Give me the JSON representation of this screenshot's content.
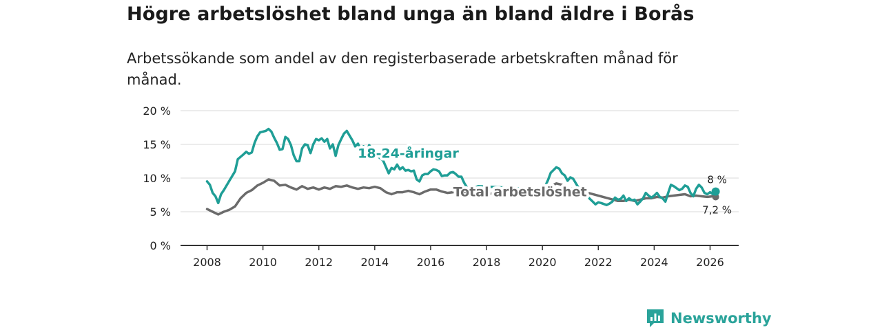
{
  "title": "Högre arbetslöshet bland unga än bland äldre i Borås",
  "subtitle": "Arbetssökande som andel av den registerbaserade arbetskraften månad för månad.",
  "brand": {
    "name": "Newsworthy",
    "logo_icon": "bar-chart-speech-bubble-icon"
  },
  "colors": {
    "youth": "#1f9e96",
    "total": "#6b6b6b",
    "grid": "#d9d9d9",
    "axis": "#333333"
  },
  "chart_data": {
    "type": "line",
    "title": "Högre arbetslöshet bland unga än bland äldre i Borås",
    "xlabel": "",
    "ylabel": "",
    "ylim": [
      0,
      20
    ],
    "xlim": [
      2007.5,
      2027.0
    ],
    "y_ticks": [
      0,
      5,
      10,
      15,
      20
    ],
    "y_tick_labels": [
      "0 %",
      "5 %",
      "10 %",
      "15 %",
      "20 %"
    ],
    "x_ticks": [
      2008,
      2010,
      2012,
      2014,
      2016,
      2018,
      2020,
      2022,
      2024,
      2026
    ],
    "x_tick_labels": [
      "2008",
      "2010",
      "2012",
      "2014",
      "2016",
      "2018",
      "2020",
      "2022",
      "2024",
      "2026"
    ],
    "grid": true,
    "series": [
      {
        "name": "18-24-åringar",
        "end_label": "8 %",
        "points": [
          [
            2008.0,
            9.5
          ],
          [
            2008.1,
            9.0
          ],
          [
            2008.2,
            7.8
          ],
          [
            2008.3,
            7.3
          ],
          [
            2008.4,
            6.3
          ],
          [
            2008.5,
            7.6
          ],
          [
            2008.6,
            8.2
          ],
          [
            2008.8,
            9.6
          ],
          [
            2009.0,
            11.0
          ],
          [
            2009.1,
            12.8
          ],
          [
            2009.3,
            13.5
          ],
          [
            2009.4,
            13.9
          ],
          [
            2009.5,
            13.6
          ],
          [
            2009.6,
            13.8
          ],
          [
            2009.7,
            15.2
          ],
          [
            2009.8,
            16.2
          ],
          [
            2009.9,
            16.8
          ],
          [
            2010.0,
            16.9
          ],
          [
            2010.1,
            17.0
          ],
          [
            2010.2,
            17.3
          ],
          [
            2010.3,
            16.9
          ],
          [
            2010.4,
            16.0
          ],
          [
            2010.5,
            15.2
          ],
          [
            2010.6,
            14.2
          ],
          [
            2010.7,
            14.3
          ],
          [
            2010.8,
            16.1
          ],
          [
            2010.9,
            15.8
          ],
          [
            2011.0,
            14.9
          ],
          [
            2011.1,
            13.4
          ],
          [
            2011.2,
            12.5
          ],
          [
            2011.3,
            12.5
          ],
          [
            2011.4,
            14.4
          ],
          [
            2011.5,
            15.0
          ],
          [
            2011.6,
            14.9
          ],
          [
            2011.7,
            13.7
          ],
          [
            2011.8,
            15.0
          ],
          [
            2011.9,
            15.8
          ],
          [
            2012.0,
            15.6
          ],
          [
            2012.1,
            15.9
          ],
          [
            2012.2,
            15.4
          ],
          [
            2012.3,
            15.8
          ],
          [
            2012.4,
            14.4
          ],
          [
            2012.5,
            15.0
          ],
          [
            2012.6,
            13.3
          ],
          [
            2012.7,
            14.9
          ],
          [
            2012.8,
            15.8
          ],
          [
            2012.9,
            16.6
          ],
          [
            2013.0,
            17.0
          ],
          [
            2013.1,
            16.3
          ],
          [
            2013.2,
            15.6
          ],
          [
            2013.3,
            14.7
          ],
          [
            2013.4,
            15.1
          ],
          [
            2013.5,
            14.2
          ],
          [
            2013.6,
            14.7
          ],
          [
            2013.7,
            13.6
          ],
          [
            2013.8,
            14.9
          ],
          [
            2013.9,
            14.4
          ],
          [
            2014.0,
            13.6
          ],
          [
            2014.3,
            12.6
          ],
          [
            2014.5,
            10.7
          ],
          [
            2014.6,
            11.5
          ],
          [
            2014.7,
            11.3
          ],
          [
            2014.8,
            12.0
          ],
          [
            2014.9,
            11.3
          ],
          [
            2015.0,
            11.6
          ],
          [
            2015.1,
            11.1
          ],
          [
            2015.2,
            11.2
          ],
          [
            2015.3,
            11.0
          ],
          [
            2015.4,
            11.1
          ],
          [
            2015.5,
            9.8
          ],
          [
            2015.6,
            9.5
          ],
          [
            2015.7,
            10.4
          ],
          [
            2015.8,
            10.6
          ],
          [
            2015.9,
            10.6
          ],
          [
            2016.0,
            11.0
          ],
          [
            2016.1,
            11.3
          ],
          [
            2016.2,
            11.2
          ],
          [
            2016.3,
            11.0
          ],
          [
            2016.4,
            10.3
          ],
          [
            2016.5,
            10.4
          ],
          [
            2016.6,
            10.4
          ],
          [
            2016.7,
            10.8
          ],
          [
            2016.8,
            10.9
          ],
          [
            2016.9,
            10.6
          ],
          [
            2017.0,
            10.2
          ],
          [
            2017.1,
            10.2
          ],
          [
            2017.2,
            9.3
          ],
          [
            2017.3,
            8.6
          ],
          [
            2017.4,
            8.0
          ],
          [
            2017.5,
            8.0
          ],
          [
            2017.6,
            8.6
          ],
          [
            2017.7,
            8.8
          ],
          [
            2020.0,
            8.3
          ],
          [
            2020.1,
            8.8
          ],
          [
            2020.2,
            9.7
          ],
          [
            2020.3,
            10.8
          ],
          [
            2020.4,
            11.2
          ],
          [
            2020.5,
            11.6
          ],
          [
            2020.6,
            11.4
          ],
          [
            2020.7,
            10.7
          ],
          [
            2020.8,
            10.4
          ],
          [
            2020.9,
            9.6
          ],
          [
            2021.0,
            10.1
          ],
          [
            2021.1,
            9.9
          ],
          [
            2021.2,
            9.2
          ],
          [
            2021.3,
            8.5
          ],
          [
            2021.8,
            6.5
          ],
          [
            2021.9,
            6.1
          ],
          [
            2022.0,
            6.4
          ],
          [
            2022.1,
            6.3
          ],
          [
            2022.3,
            6.0
          ],
          [
            2022.4,
            6.2
          ],
          [
            2022.5,
            6.5
          ],
          [
            2022.6,
            7.1
          ],
          [
            2022.7,
            6.8
          ],
          [
            2022.8,
            6.9
          ],
          [
            2022.9,
            7.4
          ],
          [
            2023.0,
            6.6
          ],
          [
            2023.1,
            7.0
          ],
          [
            2023.2,
            6.7
          ],
          [
            2023.3,
            6.8
          ],
          [
            2023.4,
            6.1
          ],
          [
            2023.5,
            6.5
          ],
          [
            2023.6,
            7.0
          ],
          [
            2023.7,
            7.8
          ],
          [
            2023.8,
            7.4
          ],
          [
            2023.9,
            7.1
          ],
          [
            2024.0,
            7.4
          ],
          [
            2024.1,
            7.8
          ],
          [
            2024.2,
            7.2
          ],
          [
            2024.3,
            7.0
          ],
          [
            2024.4,
            6.5
          ],
          [
            2024.5,
            7.8
          ],
          [
            2024.6,
            9.0
          ],
          [
            2024.7,
            8.8
          ],
          [
            2024.8,
            8.5
          ],
          [
            2024.9,
            8.2
          ],
          [
            2025.0,
            8.4
          ],
          [
            2025.1,
            8.9
          ],
          [
            2025.2,
            8.7
          ],
          [
            2025.3,
            7.8
          ],
          [
            2025.4,
            7.3
          ],
          [
            2025.5,
            8.4
          ],
          [
            2025.6,
            9.0
          ],
          [
            2025.7,
            8.6
          ],
          [
            2025.8,
            7.8
          ],
          [
            2025.9,
            7.6
          ],
          [
            2026.0,
            7.9
          ],
          [
            2026.1,
            7.6
          ],
          [
            2026.2,
            8.0
          ]
        ]
      },
      {
        "name": "Total arbetslöshet",
        "end_label": "7,2 %",
        "points": [
          [
            2008.0,
            5.4
          ],
          [
            2008.2,
            5.0
          ],
          [
            2008.4,
            4.6
          ],
          [
            2008.6,
            5.0
          ],
          [
            2008.8,
            5.3
          ],
          [
            2009.0,
            5.8
          ],
          [
            2009.2,
            7.0
          ],
          [
            2009.4,
            7.8
          ],
          [
            2009.6,
            8.2
          ],
          [
            2009.8,
            8.9
          ],
          [
            2010.0,
            9.3
          ],
          [
            2010.2,
            9.8
          ],
          [
            2010.4,
            9.6
          ],
          [
            2010.6,
            8.9
          ],
          [
            2010.8,
            9.0
          ],
          [
            2011.0,
            8.6
          ],
          [
            2011.2,
            8.3
          ],
          [
            2011.4,
            8.8
          ],
          [
            2011.6,
            8.4
          ],
          [
            2011.8,
            8.6
          ],
          [
            2012.0,
            8.3
          ],
          [
            2012.2,
            8.6
          ],
          [
            2012.4,
            8.4
          ],
          [
            2012.6,
            8.8
          ],
          [
            2012.8,
            8.7
          ],
          [
            2013.0,
            8.9
          ],
          [
            2013.2,
            8.6
          ],
          [
            2013.4,
            8.4
          ],
          [
            2013.6,
            8.6
          ],
          [
            2013.8,
            8.5
          ],
          [
            2014.0,
            8.7
          ],
          [
            2014.2,
            8.5
          ],
          [
            2014.4,
            7.9
          ],
          [
            2014.6,
            7.6
          ],
          [
            2014.8,
            7.9
          ],
          [
            2015.0,
            7.9
          ],
          [
            2015.2,
            8.1
          ],
          [
            2015.4,
            7.9
          ],
          [
            2015.6,
            7.6
          ],
          [
            2015.8,
            8.0
          ],
          [
            2016.0,
            8.3
          ],
          [
            2016.2,
            8.3
          ],
          [
            2016.4,
            8.0
          ],
          [
            2016.6,
            7.8
          ],
          [
            2016.8,
            7.9
          ],
          [
            2017.0,
            7.9
          ],
          [
            2017.2,
            7.8
          ],
          [
            2017.4,
            7.4
          ],
          [
            2017.6,
            7.3
          ],
          [
            2017.8,
            7.5
          ],
          [
            2019.8,
            8.5
          ],
          [
            2020.0,
            8.4
          ],
          [
            2020.2,
            8.7
          ],
          [
            2020.4,
            9.0
          ],
          [
            2020.5,
            9.2
          ],
          [
            2020.7,
            9.0
          ],
          [
            2020.9,
            8.6
          ],
          [
            2021.1,
            8.4
          ],
          [
            2022.7,
            6.6
          ],
          [
            2022.9,
            6.6
          ],
          [
            2023.1,
            6.8
          ],
          [
            2023.3,
            6.6
          ],
          [
            2023.5,
            6.8
          ],
          [
            2023.7,
            7.0
          ],
          [
            2023.9,
            7.0
          ],
          [
            2024.1,
            7.2
          ],
          [
            2024.3,
            7.1
          ],
          [
            2024.5,
            7.3
          ],
          [
            2024.7,
            7.4
          ],
          [
            2024.9,
            7.5
          ],
          [
            2025.1,
            7.6
          ],
          [
            2025.3,
            7.3
          ],
          [
            2025.5,
            7.4
          ],
          [
            2025.7,
            7.3
          ],
          [
            2025.9,
            7.2
          ],
          [
            2026.1,
            7.3
          ],
          [
            2026.2,
            7.2
          ]
        ]
      }
    ],
    "annotations": [
      {
        "text": "18-24-åringar",
        "series": "18-24-åringar",
        "x": 2015.2,
        "y": 13.0
      },
      {
        "text": "Total arbetslöshet",
        "series": "Total arbetslöshet",
        "x": 2019.2,
        "y": 7.3
      }
    ]
  }
}
